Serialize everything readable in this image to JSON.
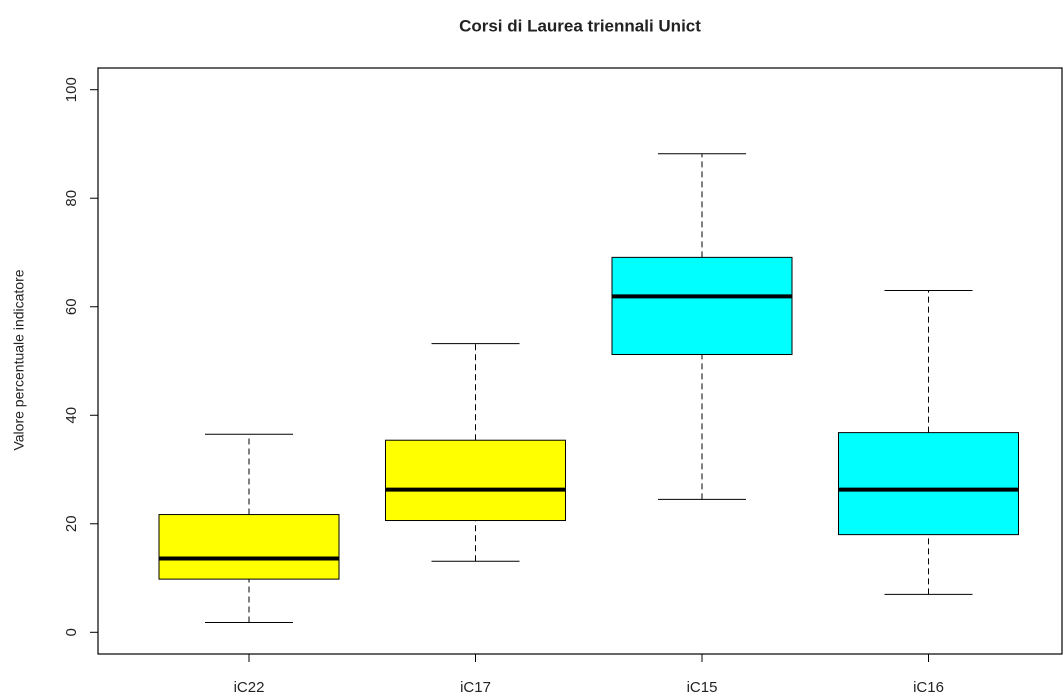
{
  "chart_data": {
    "type": "box",
    "title": "Corsi di Laurea triennali Unict",
    "y_label": "Valore percentuale indicatore",
    "categories": [
      "iC22",
      "iC17",
      "iC15",
      "iC16"
    ],
    "boxes": [
      {
        "min": 1.8,
        "q1": 9.8,
        "median": 13.6,
        "q3": 21.7,
        "max": 36.5,
        "color": "#ffff00"
      },
      {
        "min": 13.1,
        "q1": 20.6,
        "median": 26.3,
        "q3": 35.4,
        "max": 53.2,
        "color": "#ffff00"
      },
      {
        "min": 24.5,
        "q1": 51.2,
        "median": 61.9,
        "q3": 69.1,
        "max": 88.2,
        "color": "#00ffff"
      },
      {
        "min": 7.0,
        "q1": 18.0,
        "median": 26.3,
        "q3": 36.8,
        "max": 63.0,
        "color": "#00ffff"
      }
    ],
    "ylim": [
      -4,
      104
    ],
    "yticks": [
      0,
      20,
      40,
      60,
      80,
      100
    ]
  }
}
